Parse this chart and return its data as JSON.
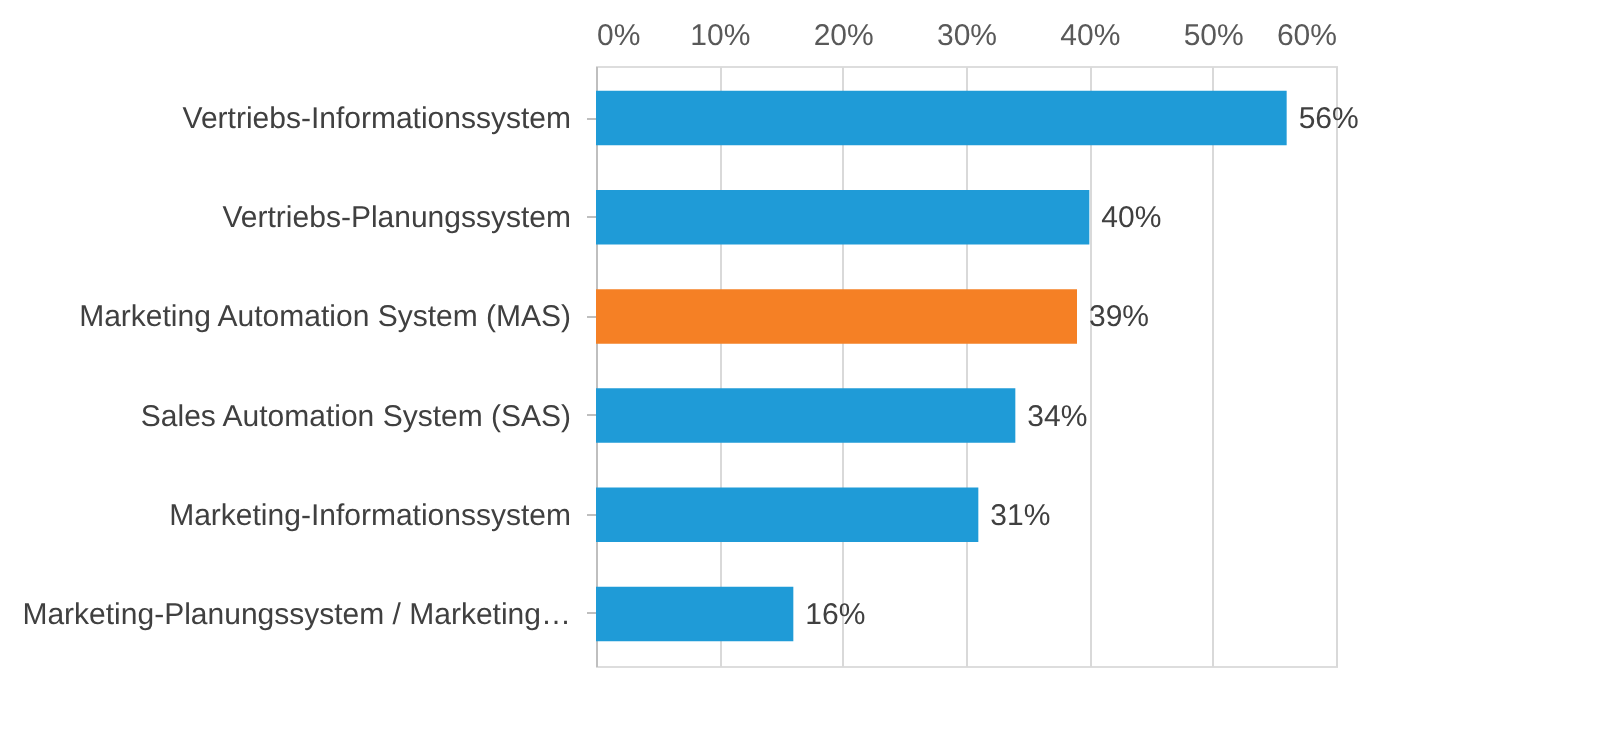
{
  "chart_data": {
    "type": "bar",
    "orientation": "horizontal",
    "categories": [
      "Vertriebs-Informationssystem",
      "Vertriebs-Planungssystem",
      "Marketing Automation System (MAS)",
      "Sales Automation System (SAS)",
      "Marketing-Informationssystem",
      "Marketing-Planungssystem / Marketing…"
    ],
    "values": [
      56,
      40,
      39,
      34,
      31,
      16
    ],
    "colors": [
      "#1f9bd7",
      "#1f9bd7",
      "#f58025",
      "#1f9bd7",
      "#1f9bd7",
      "#1f9bd7"
    ],
    "value_labels": [
      "56%",
      "40%",
      "39%",
      "34%",
      "31%",
      "16%"
    ],
    "xlim": [
      0,
      60
    ],
    "xticks": [
      {
        "value": 0,
        "label": "0%"
      },
      {
        "value": 10,
        "label": "10%"
      },
      {
        "value": 20,
        "label": "20%"
      },
      {
        "value": 30,
        "label": "30%"
      },
      {
        "value": 40,
        "label": "40%"
      },
      {
        "value": 50,
        "label": "50%"
      },
      {
        "value": 60,
        "label": "60%"
      }
    ],
    "grid": "x"
  }
}
